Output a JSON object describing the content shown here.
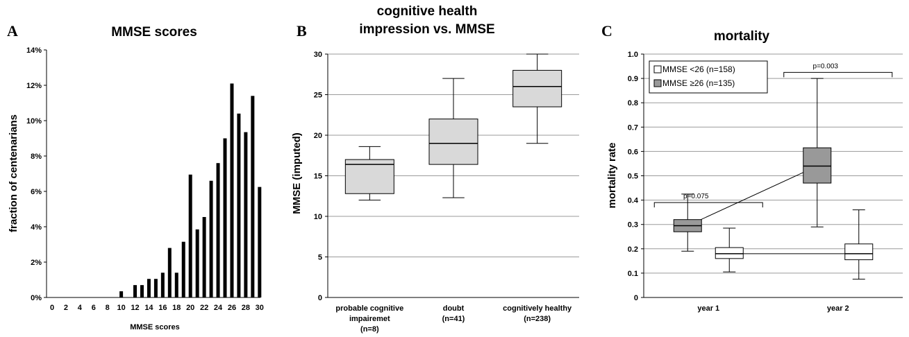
{
  "panels": {
    "a": {
      "letter": "A"
    },
    "b": {
      "letter": "B"
    },
    "c": {
      "letter": "C"
    }
  },
  "chart_data": [
    {
      "type": "bar",
      "title": "MMSE scores",
      "xlabel": "MMSE scores",
      "ylabel": "fraction of centenarians",
      "ylim": [
        0,
        14
      ],
      "y_ticks": [
        "0%",
        "2%",
        "4%",
        "6%",
        "8%",
        "10%",
        "12%",
        "14%"
      ],
      "x_ticks": [
        "0",
        "2",
        "4",
        "6",
        "8",
        "10",
        "12",
        "14",
        "16",
        "18",
        "20",
        "22",
        "24",
        "26",
        "28",
        "30"
      ],
      "categories": [
        0,
        1,
        2,
        3,
        4,
        5,
        6,
        7,
        8,
        9,
        10,
        11,
        12,
        13,
        14,
        15,
        16,
        17,
        18,
        19,
        20,
        21,
        22,
        23,
        24,
        25,
        26,
        27,
        28,
        29,
        30
      ],
      "values": [
        0,
        0,
        0,
        0,
        0,
        0,
        0,
        0,
        0,
        0,
        0.35,
        0,
        0.7,
        0.7,
        1.05,
        1.05,
        1.4,
        2.8,
        1.4,
        3.15,
        6.95,
        3.85,
        4.55,
        6.6,
        7.6,
        9.0,
        12.1,
        10.4,
        9.35,
        11.4,
        6.25
      ],
      "grid": false
    },
    {
      "type": "box",
      "title_lines": [
        "cognitive health",
        "impression vs. MMSE"
      ],
      "ylabel": "MMSE (imputed)",
      "ylim": [
        0,
        30
      ],
      "y_ticks": [
        "0",
        "5",
        "10",
        "15",
        "20",
        "25",
        "30"
      ],
      "grid": true,
      "categories": [
        {
          "lines": [
            "probable cognitive",
            "impairemet",
            "(n=8)"
          ],
          "min": 12,
          "q1": 12.8,
          "median": 16.4,
          "q3": 17,
          "max": 18.6
        },
        {
          "lines": [
            "doubt",
            "(n=41)"
          ],
          "min": 12.3,
          "q1": 16.4,
          "median": 19,
          "q3": 22,
          "max": 27
        },
        {
          "lines": [
            "cognitively healthy",
            "(n=238)"
          ],
          "min": 19,
          "q1": 23.5,
          "median": 26,
          "q3": 28,
          "max": 30
        }
      ],
      "box_color": "#d9d9d9"
    },
    {
      "type": "box",
      "title": "mortality",
      "ylabel": "mortality rate",
      "ylim": [
        0,
        1
      ],
      "y_ticks": [
        "0",
        "0.1",
        "0.2",
        "0.3",
        "0.4",
        "0.5",
        "0.6",
        "0.7",
        "0.8",
        "0.9",
        "1.0"
      ],
      "grid": true,
      "categories": [
        "year 1",
        "year 2"
      ],
      "legend": {
        "position": "top-left",
        "entries": [
          {
            "label": "MMSE <26 (n=158)",
            "color": "#ffffff"
          },
          {
            "label": "MMSE ≥26 (n=135)",
            "color": "#999999"
          }
        ]
      },
      "series": [
        {
          "boxes": [
            {
              "min": 0.105,
              "q1": 0.16,
              "median": 0.18,
              "q3": 0.205,
              "max": 0.285
            },
            {
              "min": 0.075,
              "q1": 0.155,
              "median": 0.18,
              "q3": 0.22,
              "max": 0.36
            }
          ],
          "color": "#ffffff"
        },
        {
          "boxes": [
            {
              "min": 0.19,
              "q1": 0.27,
              "median": 0.295,
              "q3": 0.32,
              "max": 0.425
            },
            {
              "min": 0.29,
              "q1": 0.47,
              "median": 0.54,
              "q3": 0.615,
              "max": 0.9
            }
          ],
          "color": "#999999"
        }
      ],
      "annotations": [
        {
          "text": "p=0.075",
          "bracket_y": 0.39
        },
        {
          "text": "p=0.003",
          "bracket_y": 0.925
        }
      ]
    }
  ]
}
